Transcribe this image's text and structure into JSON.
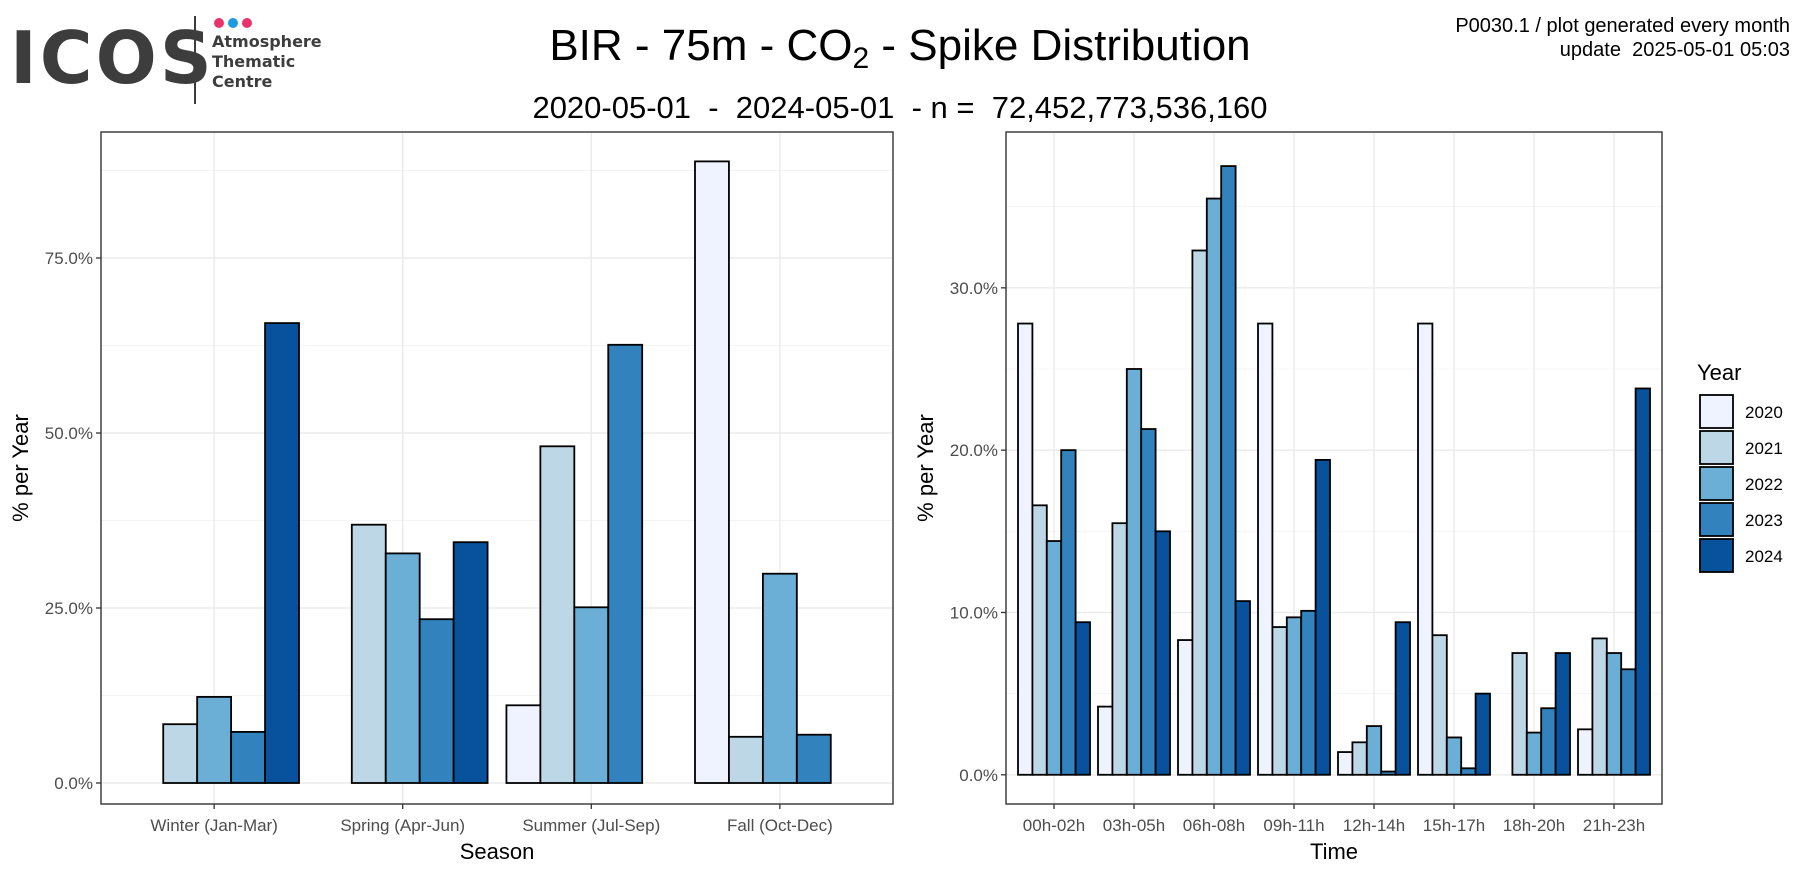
{
  "logo": {
    "wordmark": "ICOS",
    "lines": [
      "Atmosphere",
      "Thematic",
      "Centre"
    ],
    "dot_colors": [
      "#e8336d",
      "#1d9be0",
      "#e8336d"
    ]
  },
  "title": {
    "prefix": "BIR - 75m - CO",
    "subscript": "2",
    "suffix": " - Spike Distribution"
  },
  "subtitle": "2020-05-01  -  2024-05-01  - n =  72,452,773,536,160",
  "meta": {
    "line1": "P0030.1 / plot generated every month",
    "line2": "update  2025-05-01 05:03"
  },
  "legend": {
    "title": "Year",
    "entries": [
      "2020",
      "2021",
      "2022",
      "2023",
      "2024"
    ]
  },
  "colors": {
    "2020": "#eff3ff",
    "2021": "#bdd7e7",
    "2022": "#6baed6",
    "2023": "#3182bd",
    "2024": "#08519c"
  },
  "chart_data": [
    {
      "type": "bar",
      "xlabel": "Season",
      "ylabel": "% per Year",
      "categories": [
        "Winter (Jan-Mar)",
        "Spring (Apr-Jun)",
        "Summer (Jul-Sep)",
        "Fall (Oct-Dec)"
      ],
      "ylim": [
        -3,
        93
      ],
      "yticks": [
        0,
        25,
        50,
        75
      ],
      "ytick_labels": [
        "0.0%",
        "25.0%",
        "50.0%",
        "75.0%"
      ],
      "series": [
        {
          "name": "2020",
          "values": [
            null,
            null,
            11.1,
            88.8
          ]
        },
        {
          "name": "2021",
          "values": [
            8.4,
            36.9,
            48.1,
            6.6
          ]
        },
        {
          "name": "2022",
          "values": [
            12.3,
            32.8,
            25.1,
            29.9
          ]
        },
        {
          "name": "2023",
          "values": [
            7.3,
            23.4,
            62.6,
            6.9
          ]
        },
        {
          "name": "2024",
          "values": [
            65.7,
            34.4,
            null,
            null
          ]
        }
      ]
    },
    {
      "type": "bar",
      "xlabel": "Time",
      "ylabel": "% per Year",
      "categories": [
        "00h-02h",
        "03h-05h",
        "06h-08h",
        "09h-11h",
        "12h-14h",
        "15h-17h",
        "18h-20h",
        "21h-23h"
      ],
      "ylim": [
        -1.8,
        39.6
      ],
      "yticks": [
        0,
        10,
        20,
        30
      ],
      "ytick_labels": [
        "0.0%",
        "10.0%",
        "20.0%",
        "30.0%"
      ],
      "series": [
        {
          "name": "2020",
          "values": [
            27.8,
            4.2,
            8.3,
            27.8,
            1.4,
            27.8,
            null,
            2.8
          ]
        },
        {
          "name": "2021",
          "values": [
            16.6,
            15.5,
            32.3,
            9.1,
            2.0,
            8.6,
            7.5,
            8.4
          ]
        },
        {
          "name": "2022",
          "values": [
            14.4,
            25.0,
            35.5,
            9.7,
            3.0,
            2.3,
            2.6,
            7.5
          ]
        },
        {
          "name": "2023",
          "values": [
            20.0,
            21.3,
            37.5,
            10.1,
            0.2,
            0.4,
            4.1,
            6.5
          ]
        },
        {
          "name": "2024",
          "values": [
            9.4,
            15.0,
            10.7,
            19.4,
            9.4,
            5.0,
            7.5,
            23.8
          ]
        }
      ]
    }
  ]
}
